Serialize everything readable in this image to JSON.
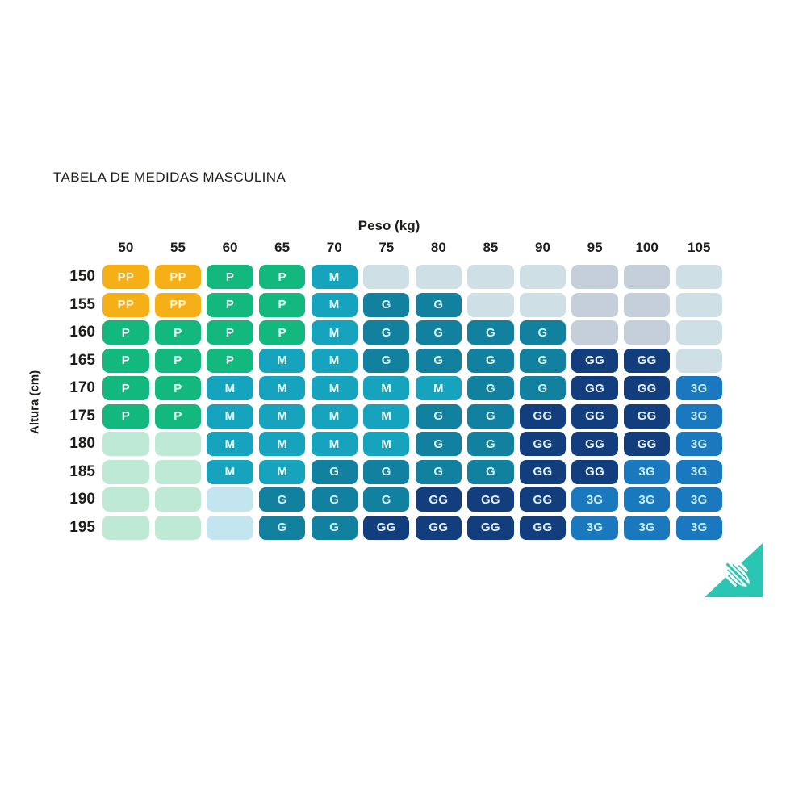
{
  "title": "TABELA DE MEDIDAS MASCULINA",
  "axis": {
    "x_title": "Peso (kg)",
    "y_title": "Altura (cm)"
  },
  "chart_data": {
    "type": "heatmap",
    "title": "TABELA DE MEDIDAS MASCULINA",
    "xlabel": "Peso (kg)",
    "ylabel": "Altura (cm)",
    "x_categories": [
      "50",
      "55",
      "60",
      "65",
      "70",
      "75",
      "80",
      "85",
      "90",
      "95",
      "100",
      "105"
    ],
    "y_categories": [
      "150",
      "155",
      "160",
      "165",
      "170",
      "175",
      "180",
      "185",
      "190",
      "195"
    ],
    "cells": [
      [
        "PP",
        "PP",
        "P",
        "P",
        "M",
        "-b",
        "-b",
        "-b",
        "-b",
        "-g",
        "-g",
        "-b"
      ],
      [
        "PP",
        "PP",
        "P",
        "P",
        "M",
        "G",
        "G",
        "-b",
        "-b",
        "-g",
        "-g",
        "-b"
      ],
      [
        "P",
        "P",
        "P",
        "P",
        "M",
        "G",
        "G",
        "G",
        "G",
        "-g",
        "-g",
        "-b"
      ],
      [
        "P",
        "P",
        "P",
        "M",
        "M",
        "G",
        "G",
        "G",
        "G",
        "GG",
        "GG",
        "-b"
      ],
      [
        "P",
        "P",
        "M",
        "M",
        "M",
        "M",
        "M",
        "G",
        "G",
        "GG",
        "GG",
        "3G"
      ],
      [
        "P",
        "P",
        "M",
        "M",
        "M",
        "M",
        "G",
        "G",
        "GG",
        "GG",
        "GG",
        "3G"
      ],
      [
        "-m",
        "-m",
        "M",
        "M",
        "M",
        "M",
        "G",
        "G",
        "GG",
        "GG",
        "GG",
        "3G"
      ],
      [
        "-m",
        "-m",
        "M",
        "M",
        "G",
        "G",
        "G",
        "G",
        "GG",
        "GG",
        "3G",
        "3G"
      ],
      [
        "-m",
        "-m",
        "-c",
        "G",
        "G",
        "G",
        "GG",
        "GG",
        "GG",
        "3G",
        "3G",
        "3G"
      ],
      [
        "-m",
        "-m",
        "-c",
        "G",
        "G",
        "GG",
        "GG",
        "GG",
        "GG",
        "3G",
        "3G",
        "3G"
      ]
    ],
    "sizes_legend": {
      "PP": {
        "bg": "#F7AF17",
        "fg": "#FFF8DC"
      },
      "P": {
        "bg": "#12B87E",
        "fg": "#F2FEF9"
      },
      "M": {
        "bg": "#16A3BE",
        "fg": "#EBFBFC"
      },
      "G": {
        "bg": "#12809F",
        "fg": "#D3F1F4"
      },
      "GG": {
        "bg": "#123E7D",
        "fg": "#E3EFFA"
      },
      "3G": {
        "bg": "#1A79BE",
        "fg": "#C6EEF9"
      }
    },
    "empty_shades": {
      "-b": "#CEDFE5",
      "-g": "#C4CFD9",
      "-m": "#BEE9D4",
      "-c": "#C3E5EF"
    }
  },
  "brand": {
    "logo_color": "#2BC5B3"
  }
}
